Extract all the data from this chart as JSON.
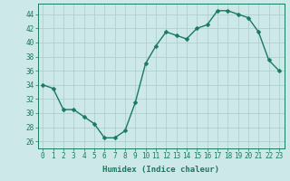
{
  "x": [
    0,
    1,
    2,
    3,
    4,
    5,
    6,
    7,
    8,
    9,
    10,
    11,
    12,
    13,
    14,
    15,
    16,
    17,
    18,
    19,
    20,
    21,
    22,
    23
  ],
  "y": [
    34,
    33.5,
    30.5,
    30.5,
    29.5,
    28.5,
    26.5,
    26.5,
    27.5,
    31.5,
    37,
    39.5,
    41.5,
    41,
    40.5,
    42,
    42.5,
    44.5,
    44.5,
    44,
    43.5,
    41.5,
    37.5,
    36
  ],
  "line_color": "#1a7a5e",
  "marker_color": "#1a7a5e",
  "bg_color": "#cce8e8",
  "grid_color": "#aacccc",
  "xlabel": "Humidex (Indice chaleur)",
  "xlim": [
    -0.5,
    23.5
  ],
  "ylim": [
    25,
    45.5
  ],
  "yticks": [
    26,
    28,
    30,
    32,
    34,
    36,
    38,
    40,
    42,
    44
  ],
  "xticks": [
    0,
    1,
    2,
    3,
    4,
    5,
    6,
    7,
    8,
    9,
    10,
    11,
    12,
    13,
    14,
    15,
    16,
    17,
    18,
    19,
    20,
    21,
    22,
    23
  ],
  "xlabel_fontsize": 6.5,
  "tick_fontsize": 5.5,
  "line_width": 1.0,
  "marker_size": 2.5
}
